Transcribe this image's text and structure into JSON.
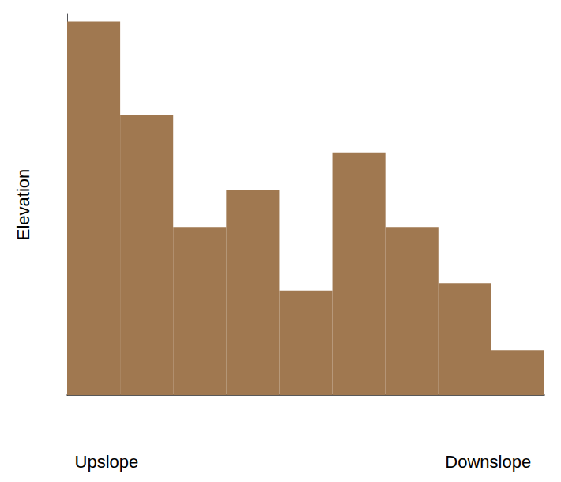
{
  "chart_data": {
    "type": "bar",
    "categories": [
      null,
      null,
      null,
      null,
      null,
      null,
      null,
      null,
      null
    ],
    "values": [
      10,
      7.5,
      4.5,
      5.5,
      2.8,
      6.5,
      4.5,
      3.0,
      1.2
    ],
    "color": "#A07850",
    "ylabel": "Elevation",
    "annotations": [
      "Upslope",
      "Downslope"
    ],
    "ylim": [
      0,
      10.2
    ],
    "grid": false,
    "tick_labels": false
  }
}
